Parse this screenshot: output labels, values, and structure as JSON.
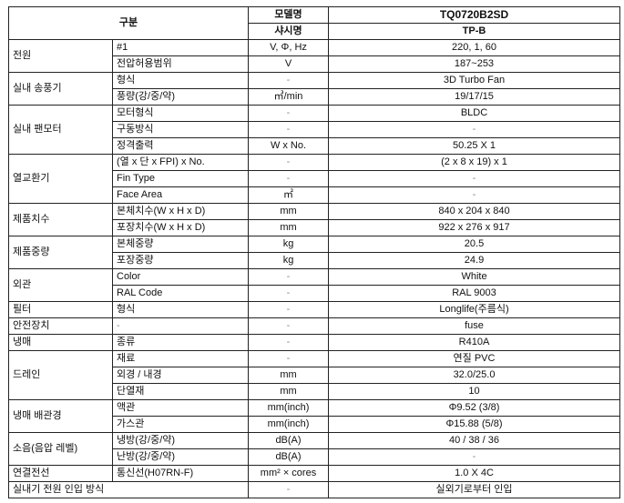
{
  "header": {
    "category": "구분",
    "model_label": "모델명",
    "model_value": "TQ0720B2SD",
    "chassis_label": "샤시명",
    "chassis_value": "TP-B"
  },
  "groups": [
    {
      "name": "전원",
      "rows": [
        {
          "item": "#1",
          "unit": "V, Φ, Hz",
          "value": "220, 1, 60"
        },
        {
          "item": "전압허용범위",
          "unit": "V",
          "value": "187~253"
        }
      ]
    },
    {
      "name": "실내 송풍기",
      "rows": [
        {
          "item": "형식",
          "unit": "-",
          "value": "3D Turbo Fan"
        },
        {
          "item": "풍량(강/중/약)",
          "unit": "㎥/min",
          "value": "19/17/15"
        }
      ]
    },
    {
      "name": "실내 팬모터",
      "rows": [
        {
          "item": "모터형식",
          "unit": "-",
          "value": "BLDC"
        },
        {
          "item": "구동방식",
          "unit": "-",
          "value": "-"
        },
        {
          "item": "정격출력",
          "unit": "W x No.",
          "value": "50.25 X 1"
        }
      ]
    },
    {
      "name": "열교환기",
      "rows": [
        {
          "item": "(열 x 단 x FPI) x No.",
          "unit": "-",
          "value": "(2 x 8 x 19) x 1"
        },
        {
          "item": "Fin Type",
          "unit": "-",
          "value": "-"
        },
        {
          "item": "Face Area",
          "unit": "㎡",
          "value": "-"
        }
      ]
    },
    {
      "name": "제품치수",
      "rows": [
        {
          "item": "본체치수(W x H x D)",
          "unit": "mm",
          "value": "840 x 204 x 840"
        },
        {
          "item": "포장치수(W x H x D)",
          "unit": "mm",
          "value": "922 x 276 x 917"
        }
      ]
    },
    {
      "name": "제품중량",
      "rows": [
        {
          "item": "본체중량",
          "unit": "kg",
          "value": "20.5"
        },
        {
          "item": "포장중량",
          "unit": "kg",
          "value": "24.9"
        }
      ]
    },
    {
      "name": "외관",
      "rows": [
        {
          "item": "Color",
          "unit": "-",
          "value": "White"
        },
        {
          "item": "RAL Code",
          "unit": "-",
          "value": "RAL 9003"
        }
      ]
    },
    {
      "name": "필터",
      "rows": [
        {
          "item": "형식",
          "unit": "-",
          "value": "Longlife(주름식)"
        }
      ]
    },
    {
      "name": "안전장치",
      "rows": [
        {
          "item": "-",
          "unit": "-",
          "value": "fuse"
        }
      ]
    },
    {
      "name": "냉매",
      "rows": [
        {
          "item": "종류",
          "unit": "-",
          "value": "R410A"
        }
      ]
    },
    {
      "name": "드레인",
      "rows": [
        {
          "item": "재료",
          "unit": "-",
          "value": "연질 PVC"
        },
        {
          "item": "외경 / 내경",
          "unit": "mm",
          "value": "32.0/25.0"
        },
        {
          "item": "단열재",
          "unit": "mm",
          "value": "10"
        }
      ]
    },
    {
      "name": "냉매 배관경",
      "rows": [
        {
          "item": "액관",
          "unit": "mm(inch)",
          "value": "Φ9.52 (3/8)"
        },
        {
          "item": "가스관",
          "unit": "mm(inch)",
          "value": "Φ15.88 (5/8)"
        }
      ]
    },
    {
      "name": "소음(음압 레벨)",
      "rows": [
        {
          "item": "냉방(강/중/약)",
          "unit": "dB(A)",
          "value": "40 / 38 / 36"
        },
        {
          "item": "난방(강/중/약)",
          "unit": "dB(A)",
          "value": "-"
        }
      ]
    },
    {
      "name": "연결전선",
      "rows": [
        {
          "item": "통신선(H07RN-F)",
          "unit": "mm² × cores",
          "value": "1.0 X 4C"
        }
      ]
    }
  ],
  "last_row": {
    "name": "실내기 전원 인입 방식",
    "unit": "-",
    "value": "실외기로부터 인입"
  }
}
